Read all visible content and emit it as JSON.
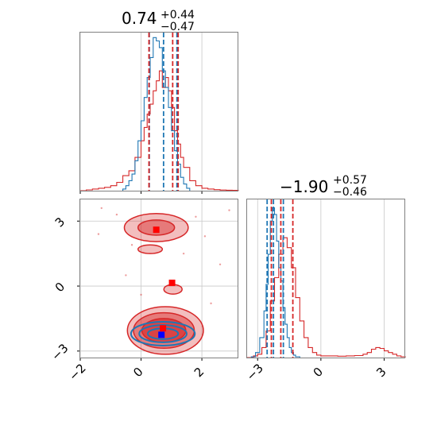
{
  "colors": {
    "red": "#d62728",
    "blue": "#1f77b4",
    "grid": "#c8c8c8",
    "spine": "#808080"
  },
  "chart_data": [
    {
      "type": "histogram",
      "panel": "top-left",
      "title": {
        "value": "0.74",
        "plus": "+0.44",
        "minus": "−0.47"
      },
      "xlim": [
        -2,
        3.2
      ],
      "x_ticks": [
        -2,
        0,
        2
      ],
      "x_ticklabels_shown": false,
      "series": [
        {
          "color": "#d62728",
          "bin_edges": [
            -2.0,
            -1.8,
            -1.6,
            -1.4,
            -1.2,
            -1.0,
            -0.8,
            -0.6,
            -0.4,
            -0.2,
            0.0,
            0.1,
            0.2,
            0.3,
            0.4,
            0.5,
            0.6,
            0.7,
            0.8,
            0.9,
            1.0,
            1.1,
            1.2,
            1.3,
            1.4,
            1.6,
            1.8,
            2.0,
            2.2,
            2.4,
            2.6,
            2.8,
            3.0,
            3.2
          ],
          "counts": [
            0.0,
            0.005,
            0.01,
            0.015,
            0.02,
            0.03,
            0.05,
            0.09,
            0.12,
            0.2,
            0.3,
            0.38,
            0.46,
            0.52,
            0.6,
            0.66,
            0.72,
            0.62,
            0.68,
            0.6,
            0.5,
            0.36,
            0.28,
            0.2,
            0.14,
            0.06,
            0.03,
            0.015,
            0.01,
            0.006,
            0.004,
            0.003,
            0.002
          ]
        },
        {
          "color": "#1f77b4",
          "bin_edges": [
            -0.6,
            -0.5,
            -0.4,
            -0.3,
            -0.2,
            -0.1,
            0.0,
            0.1,
            0.2,
            0.3,
            0.4,
            0.5,
            0.6,
            0.7,
            0.8,
            0.9,
            1.0,
            1.1,
            1.2,
            1.3,
            1.4,
            1.5,
            1.6
          ],
          "counts": [
            0.01,
            0.03,
            0.06,
            0.1,
            0.18,
            0.3,
            0.42,
            0.56,
            0.68,
            0.8,
            0.92,
            0.9,
            0.86,
            0.72,
            0.62,
            0.5,
            0.36,
            0.24,
            0.16,
            0.08,
            0.04,
            0.015
          ]
        }
      ],
      "quantile_lines": [
        {
          "color": "#1f77b4",
          "x": [
            0.27,
            0.74,
            1.18
          ]
        },
        {
          "color": "#d62728",
          "x": [
            0.26,
            1.04,
            1.22
          ]
        }
      ]
    },
    {
      "type": "contour",
      "panel": "bottom-left",
      "xlim": [
        -2,
        3.2
      ],
      "ylim": [
        -3.3,
        4.0
      ],
      "x_ticks": [
        -2,
        0,
        2
      ],
      "x_ticklabels": [
        "−2",
        "0",
        "2"
      ],
      "y_ticks": [
        -3,
        0,
        3
      ],
      "y_ticklabels": [
        "−3",
        "0",
        "3"
      ],
      "red_density_regions": [
        {
          "cx": 0.8,
          "cy": -2.05,
          "rx": 1.25,
          "ry": 1.1,
          "level": 1
        },
        {
          "cx": 0.75,
          "cy": -2.05,
          "rx": 1.0,
          "ry": 0.82,
          "level": 2
        },
        {
          "cx": 0.75,
          "cy": -2.05,
          "rx": 0.72,
          "ry": 0.55,
          "level": 3
        },
        {
          "cx": 0.5,
          "cy": 2.7,
          "rx": 1.05,
          "ry": 0.65,
          "level": 1
        },
        {
          "cx": 0.5,
          "cy": 2.7,
          "rx": 0.6,
          "ry": 0.35,
          "level": 2
        },
        {
          "cx": 1.05,
          "cy": -0.15,
          "rx": 0.3,
          "ry": 0.22,
          "level": 1
        },
        {
          "cx": 0.3,
          "cy": 1.7,
          "rx": 0.4,
          "ry": 0.2,
          "level": 1
        }
      ],
      "blue_contours": [
        {
          "cx": 0.72,
          "cy": -2.2,
          "rx": 1.05,
          "ry": 0.55
        },
        {
          "cx": 0.72,
          "cy": -2.2,
          "rx": 0.78,
          "ry": 0.4
        },
        {
          "cx": 0.72,
          "cy": -2.2,
          "rx": 0.5,
          "ry": 0.25
        }
      ],
      "scatter_points": [
        {
          "x": -1.3,
          "y": 3.6
        },
        {
          "x": -0.8,
          "y": 3.3
        },
        {
          "x": -1.4,
          "y": 2.4
        },
        {
          "x": -0.3,
          "y": 1.9
        },
        {
          "x": 1.8,
          "y": 3.2
        },
        {
          "x": 2.1,
          "y": 2.3
        },
        {
          "x": 2.6,
          "y": 1.0
        },
        {
          "x": 2.9,
          "y": 3.5
        },
        {
          "x": 1.4,
          "y": 1.5
        },
        {
          "x": -0.5,
          "y": 0.5
        },
        {
          "x": 2.3,
          "y": -0.8
        },
        {
          "x": 0.0,
          "y": -0.4
        }
      ],
      "markers": [
        {
          "color": "#ff0000",
          "x": 0.5,
          "y": 2.6
        },
        {
          "color": "#ff0000",
          "x": 1.02,
          "y": 0.15
        },
        {
          "color": "#ff0000",
          "x": 0.72,
          "y": -1.95
        },
        {
          "color": "#0000ff",
          "x": 0.67,
          "y": -2.25
        }
      ]
    },
    {
      "type": "histogram",
      "panel": "bottom-right",
      "title": {
        "value": "−1.90",
        "plus": "+0.57",
        "minus": "−0.46"
      },
      "xlim": [
        -3.5,
        4.0
      ],
      "x_ticks": [
        -3,
        0,
        3
      ],
      "x_ticklabels": [
        "−3",
        "0",
        "3"
      ],
      "series": [
        {
          "color": "#d62728",
          "bin_edges": [
            -3.5,
            -3.2,
            -3.0,
            -2.8,
            -2.6,
            -2.4,
            -2.2,
            -2.0,
            -1.8,
            -1.6,
            -1.4,
            -1.2,
            -1.0,
            -0.8,
            -0.6,
            -0.4,
            -0.2,
            0.0,
            0.4,
            0.8,
            1.2,
            1.6,
            2.0,
            2.2,
            2.4,
            2.6,
            2.8,
            3.0,
            3.2,
            3.4,
            3.6,
            3.8,
            4.0
          ],
          "counts": [
            0.0,
            0.01,
            0.02,
            0.06,
            0.16,
            0.34,
            0.48,
            0.62,
            0.72,
            0.66,
            0.54,
            0.36,
            0.22,
            0.12,
            0.06,
            0.03,
            0.015,
            0.01,
            0.01,
            0.008,
            0.01,
            0.012,
            0.02,
            0.03,
            0.05,
            0.06,
            0.055,
            0.04,
            0.03,
            0.02,
            0.01,
            0.005
          ]
        },
        {
          "color": "#1f77b4",
          "bin_edges": [
            -3.3,
            -3.1,
            -2.9,
            -2.7,
            -2.6,
            -2.5,
            -2.4,
            -2.3,
            -2.2,
            -2.1,
            -2.0,
            -1.9,
            -1.8,
            -1.7,
            -1.6,
            -1.5,
            -1.4,
            -1.3,
            -1.2,
            -1.0
          ],
          "counts": [
            0.005,
            0.03,
            0.12,
            0.28,
            0.44,
            0.62,
            0.82,
            0.9,
            0.86,
            0.7,
            0.54,
            0.46,
            0.3,
            0.2,
            0.12,
            0.06,
            0.03,
            0.015,
            0.005
          ]
        }
      ],
      "quantile_lines": [
        {
          "color": "#1f77b4",
          "x": [
            -2.55,
            -2.25,
            -1.78
          ]
        },
        {
          "color": "#d62728",
          "x": [
            -2.35,
            -1.9,
            -1.33
          ]
        }
      ]
    }
  ]
}
